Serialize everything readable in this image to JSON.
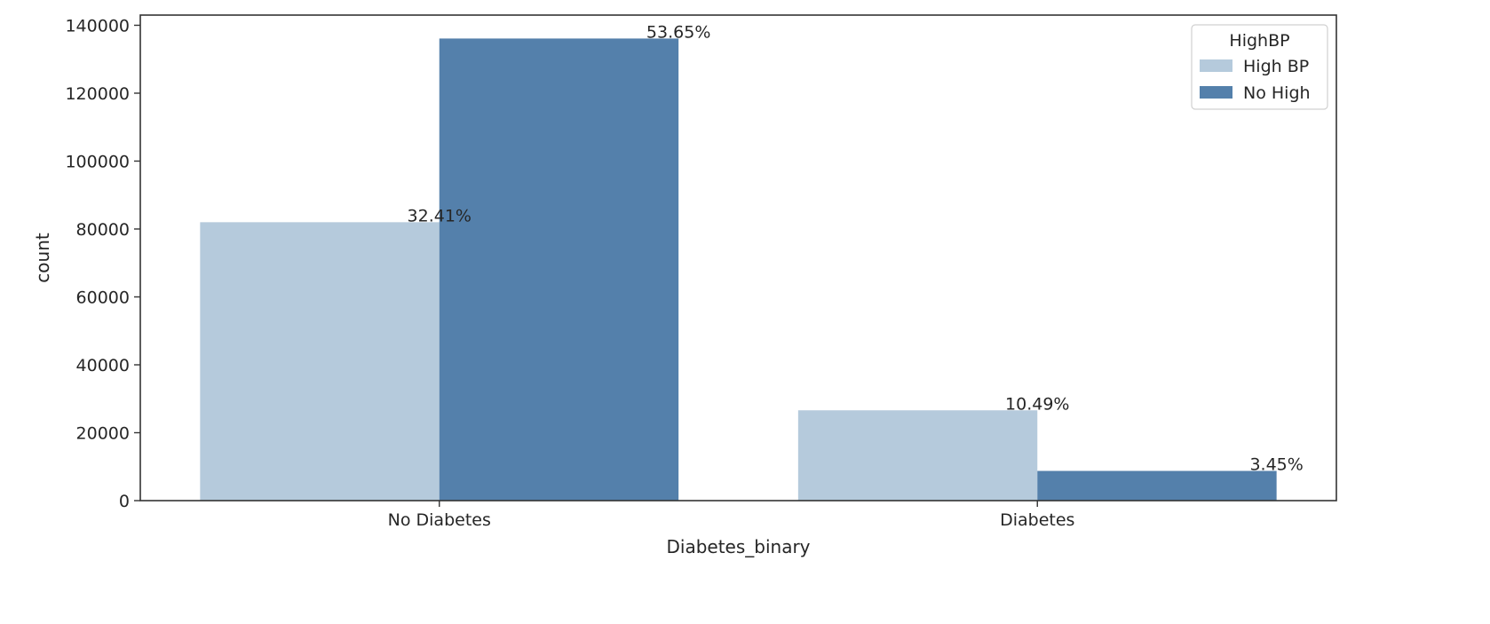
{
  "chart_data": {
    "type": "bar",
    "title": "",
    "xlabel": "Diabetes_binary",
    "ylabel": "count",
    "categories": [
      "No Diabetes",
      "Diabetes"
    ],
    "series": [
      {
        "name": "High BP",
        "values": [
          82000,
          26600
        ],
        "labels": [
          "32.41%",
          "10.49%"
        ],
        "color": "#b5cadc"
      },
      {
        "name": "No High",
        "values": [
          136100,
          8750
        ],
        "labels": [
          "53.65%",
          "3.45%"
        ],
        "color": "#5480ab"
      }
    ],
    "ylim": [
      0,
      143000
    ],
    "yticks": [
      0,
      20000,
      40000,
      60000,
      80000,
      100000,
      120000,
      140000
    ],
    "grid": false,
    "legend": {
      "title": "HighBP",
      "position": "top-right"
    }
  }
}
